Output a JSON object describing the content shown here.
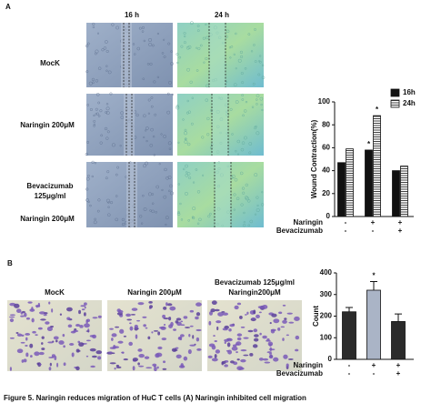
{
  "panel_a": {
    "letter": "A",
    "columns": [
      "16 h",
      "24 h"
    ],
    "rows": [
      "MocK",
      "Naringin  200μM",
      "Bevacizumab",
      "125μg/ml",
      "Naringin 200μM"
    ]
  },
  "panel_b": {
    "letter": "B",
    "images": [
      "MocK",
      "Naringin  200μM",
      "Bevacizumab 125μg/ml",
      "Naringin200μM"
    ]
  },
  "caption": "Figure 5. Naringin reduces migration of HuC T cells (A) Naringin inhibited cell migration",
  "chart_data": [
    {
      "type": "bar",
      "ylabel": "Wound Contraction(%)",
      "categories": [
        null,
        null,
        null
      ],
      "series": [
        {
          "name": "16h",
          "color": "#111111",
          "values": [
            47,
            58,
            40
          ]
        },
        {
          "name": "24h",
          "color": "#ffffff",
          "pattern": "horizontal-lines",
          "values": [
            59,
            88,
            44
          ]
        }
      ],
      "ylim": [
        0,
        100
      ],
      "yticks": [
        0,
        20,
        40,
        60,
        80,
        100
      ],
      "legend": "upper right",
      "annotations": [
        {
          "text": "*",
          "series": 0,
          "category": 1
        },
        {
          "text": "*",
          "series": 1,
          "category": 1
        }
      ],
      "condition_rows": [
        {
          "label": "Naringin",
          "values": [
            "-",
            "+",
            "+"
          ]
        },
        {
          "label": "Bevacizumab",
          "values": [
            "-",
            "-",
            "+"
          ]
        }
      ]
    },
    {
      "type": "bar",
      "ylabel": "Count",
      "categories": [
        null,
        null,
        null
      ],
      "values": [
        220,
        320,
        175
      ],
      "errors": [
        20,
        40,
        35
      ],
      "colors": [
        "#2b2b2b",
        "#aab4c6",
        "#2b2b2b"
      ],
      "ylim": [
        0,
        400
      ],
      "yticks": [
        0,
        100,
        200,
        300,
        400
      ],
      "annotations": [
        {
          "text": "*",
          "category": 1
        }
      ],
      "condition_rows": [
        {
          "label": "Naringin",
          "values": [
            "-",
            "+",
            "+"
          ]
        },
        {
          "label": "Bevacizumab",
          "values": [
            "-",
            "-",
            "+"
          ]
        }
      ]
    }
  ]
}
